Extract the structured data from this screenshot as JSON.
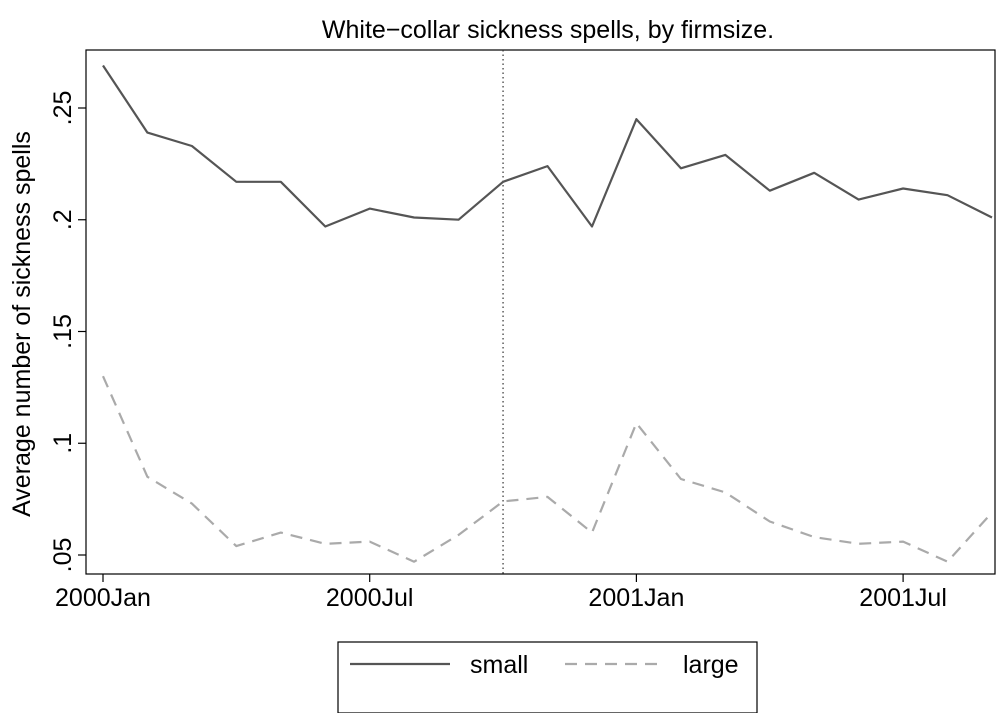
{
  "chart_data": {
    "type": "line",
    "title": "White−collar sickness spells, by firmsize.",
    "xlabel": "",
    "ylabel": "Average number of sickness spells",
    "x": [
      "2000-01",
      "2000-02",
      "2000-03",
      "2000-04",
      "2000-05",
      "2000-06",
      "2000-07",
      "2000-08",
      "2000-09",
      "2000-10",
      "2000-11",
      "2000-12",
      "2001-01",
      "2001-02",
      "2001-03",
      "2001-04",
      "2001-05",
      "2001-06",
      "2001-07",
      "2001-08",
      "2001-09"
    ],
    "xticks": [
      {
        "value": "2000-01",
        "label": "2000Jan"
      },
      {
        "value": "2000-07",
        "label": "2000Jul"
      },
      {
        "value": "2001-01",
        "label": "2001Jan"
      },
      {
        "value": "2001-07",
        "label": "2001Jul"
      }
    ],
    "yticks": [
      {
        "value": 0.05,
        "label": ".05"
      },
      {
        "value": 0.1,
        "label": ".1"
      },
      {
        "value": 0.15,
        "label": ".15"
      },
      {
        "value": 0.2,
        "label": ".2"
      },
      {
        "value": 0.25,
        "label": ".25"
      }
    ],
    "ylim": [
      0.045,
      0.275
    ],
    "xlim": [
      "2000-01",
      "2001-09"
    ],
    "reference_line": {
      "x": "2000-10",
      "style": "dotted"
    },
    "series": [
      {
        "name": "small",
        "color": "#555555",
        "dash": "solid",
        "values": [
          0.269,
          0.239,
          0.233,
          0.217,
          0.217,
          0.197,
          0.205,
          0.201,
          0.2,
          0.217,
          0.224,
          0.197,
          0.245,
          0.223,
          0.229,
          0.213,
          0.221,
          0.209,
          0.214,
          0.211,
          0.201
        ]
      },
      {
        "name": "large",
        "color": "#aaaaaa",
        "dash": "dashed",
        "values": [
          0.13,
          0.085,
          0.073,
          0.054,
          0.06,
          0.055,
          0.056,
          0.047,
          0.059,
          0.074,
          0.076,
          0.06,
          0.109,
          0.084,
          0.078,
          0.065,
          0.058,
          0.055,
          0.056,
          0.047,
          0.069
        ]
      }
    ],
    "legend_position": "bottom",
    "grid": false
  }
}
